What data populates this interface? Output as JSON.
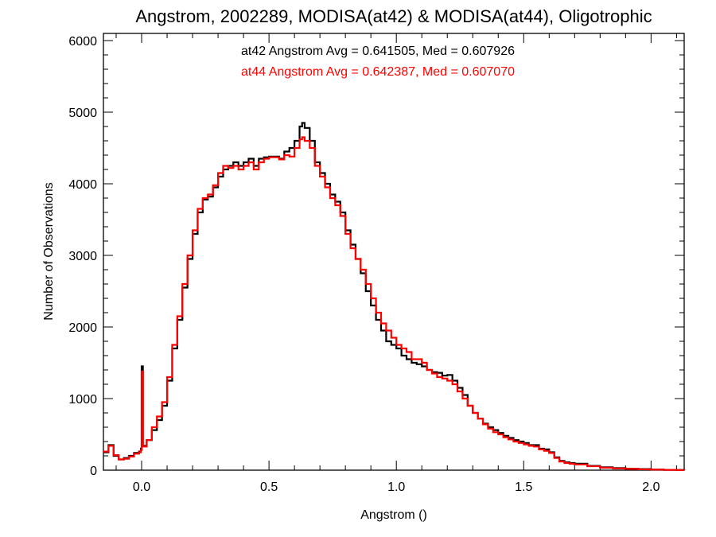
{
  "chart_data": {
    "type": "line",
    "title": "Angstrom, 2002289, MODISA(at42) & MODISA(at44), Oligotrophic",
    "xlabel": "Angstrom ()",
    "ylabel": "Number of Observations",
    "xlim": [
      -0.15,
      2.13
    ],
    "ylim": [
      0,
      6100
    ],
    "x_ticks": [
      0.0,
      0.5,
      1.0,
      1.5,
      2.0
    ],
    "x_tick_labels": [
      "0.0",
      "0.5",
      "1.0",
      "1.5",
      "2.0"
    ],
    "y_ticks": [
      0,
      1000,
      2000,
      3000,
      4000,
      5000,
      6000
    ],
    "y_tick_labels": [
      "0",
      "1000",
      "2000",
      "3000",
      "4000",
      "5000",
      "6000"
    ],
    "grid": false,
    "annotations": [
      {
        "text": "at42 Angstrom Avg = 0.641505, Med = 0.607926",
        "color": "#000000"
      },
      {
        "text": "at44 Angstrom Avg = 0.642387, Med = 0.607070",
        "color": "#ff0000"
      }
    ],
    "series": [
      {
        "name": "at42",
        "color": "#000000",
        "x": [
          -0.15,
          -0.13,
          -0.11,
          -0.09,
          -0.07,
          -0.05,
          -0.03,
          -0.01,
          -0.003,
          0.0,
          0.005,
          0.02,
          0.04,
          0.06,
          0.08,
          0.1,
          0.12,
          0.14,
          0.16,
          0.18,
          0.2,
          0.22,
          0.24,
          0.26,
          0.28,
          0.3,
          0.32,
          0.34,
          0.36,
          0.38,
          0.4,
          0.42,
          0.44,
          0.46,
          0.48,
          0.5,
          0.52,
          0.54,
          0.56,
          0.58,
          0.6,
          0.62,
          0.63,
          0.64,
          0.66,
          0.68,
          0.7,
          0.72,
          0.74,
          0.76,
          0.78,
          0.8,
          0.82,
          0.84,
          0.86,
          0.88,
          0.9,
          0.92,
          0.94,
          0.96,
          0.98,
          1.0,
          1.02,
          1.04,
          1.06,
          1.08,
          1.1,
          1.12,
          1.14,
          1.16,
          1.18,
          1.2,
          1.22,
          1.24,
          1.26,
          1.28,
          1.3,
          1.32,
          1.34,
          1.36,
          1.38,
          1.4,
          1.42,
          1.44,
          1.46,
          1.48,
          1.5,
          1.52,
          1.54,
          1.56,
          1.58,
          1.6,
          1.62,
          1.64,
          1.66,
          1.68,
          1.7,
          1.75,
          1.8,
          1.85,
          1.9,
          1.95,
          2.0,
          2.05,
          2.1,
          2.13
        ],
        "y": [
          250,
          350,
          200,
          150,
          170,
          200,
          240,
          260,
          300,
          1450,
          340,
          420,
          560,
          700,
          900,
          1250,
          1700,
          2100,
          2550,
          2950,
          3300,
          3600,
          3780,
          3820,
          3950,
          4100,
          4200,
          4250,
          4300,
          4250,
          4300,
          4350,
          4250,
          4350,
          4370,
          4380,
          4380,
          4350,
          4450,
          4500,
          4600,
          4800,
          4850,
          4780,
          4600,
          4300,
          4150,
          4000,
          3850,
          3750,
          3600,
          3350,
          3150,
          2950,
          2750,
          2500,
          2300,
          2100,
          1950,
          1800,
          1750,
          1700,
          1600,
          1550,
          1500,
          1480,
          1450,
          1400,
          1370,
          1360,
          1320,
          1330,
          1250,
          1150,
          1050,
          900,
          800,
          720,
          650,
          600,
          560,
          520,
          480,
          450,
          420,
          400,
          380,
          350,
          350,
          300,
          290,
          250,
          180,
          130,
          110,
          100,
          90,
          60,
          40,
          30,
          20,
          15,
          10,
          5,
          3,
          0
        ]
      },
      {
        "name": "at44",
        "color": "#ff0000",
        "x": [
          -0.15,
          -0.13,
          -0.11,
          -0.09,
          -0.07,
          -0.05,
          -0.03,
          -0.01,
          -0.003,
          0.0,
          0.005,
          0.02,
          0.04,
          0.06,
          0.08,
          0.1,
          0.12,
          0.14,
          0.16,
          0.18,
          0.2,
          0.22,
          0.24,
          0.26,
          0.28,
          0.3,
          0.32,
          0.34,
          0.36,
          0.38,
          0.4,
          0.42,
          0.44,
          0.46,
          0.48,
          0.5,
          0.52,
          0.54,
          0.56,
          0.58,
          0.6,
          0.62,
          0.63,
          0.64,
          0.66,
          0.68,
          0.7,
          0.72,
          0.74,
          0.76,
          0.78,
          0.8,
          0.82,
          0.84,
          0.86,
          0.88,
          0.9,
          0.92,
          0.94,
          0.96,
          0.98,
          1.0,
          1.02,
          1.04,
          1.06,
          1.08,
          1.1,
          1.12,
          1.14,
          1.16,
          1.18,
          1.2,
          1.22,
          1.24,
          1.26,
          1.28,
          1.3,
          1.32,
          1.34,
          1.36,
          1.38,
          1.4,
          1.42,
          1.44,
          1.46,
          1.48,
          1.5,
          1.52,
          1.54,
          1.56,
          1.58,
          1.6,
          1.62,
          1.64,
          1.66,
          1.68,
          1.7,
          1.75,
          1.8,
          1.85,
          1.9,
          1.95,
          2.0,
          2.05,
          2.1,
          2.13
        ],
        "y": [
          260,
          340,
          210,
          150,
          160,
          190,
          230,
          250,
          280,
          1380,
          330,
          420,
          600,
          750,
          950,
          1300,
          1750,
          2150,
          2600,
          3000,
          3350,
          3650,
          3800,
          3850,
          3980,
          4150,
          4250,
          4220,
          4250,
          4200,
          4250,
          4300,
          4200,
          4300,
          4350,
          4370,
          4370,
          4340,
          4400,
          4380,
          4500,
          4620,
          4650,
          4600,
          4500,
          4250,
          4100,
          3950,
          3800,
          3700,
          3550,
          3300,
          3100,
          2950,
          2800,
          2600,
          2400,
          2200,
          2050,
          1950,
          1850,
          1750,
          1700,
          1650,
          1550,
          1550,
          1500,
          1400,
          1350,
          1300,
          1280,
          1250,
          1200,
          1100,
          1000,
          900,
          800,
          720,
          640,
          580,
          530,
          500,
          460,
          430,
          400,
          380,
          360,
          340,
          330,
          290,
          270,
          240,
          170,
          120,
          100,
          90,
          80,
          55,
          35,
          25,
          18,
          12,
          8,
          4,
          2,
          0
        ]
      }
    ]
  }
}
